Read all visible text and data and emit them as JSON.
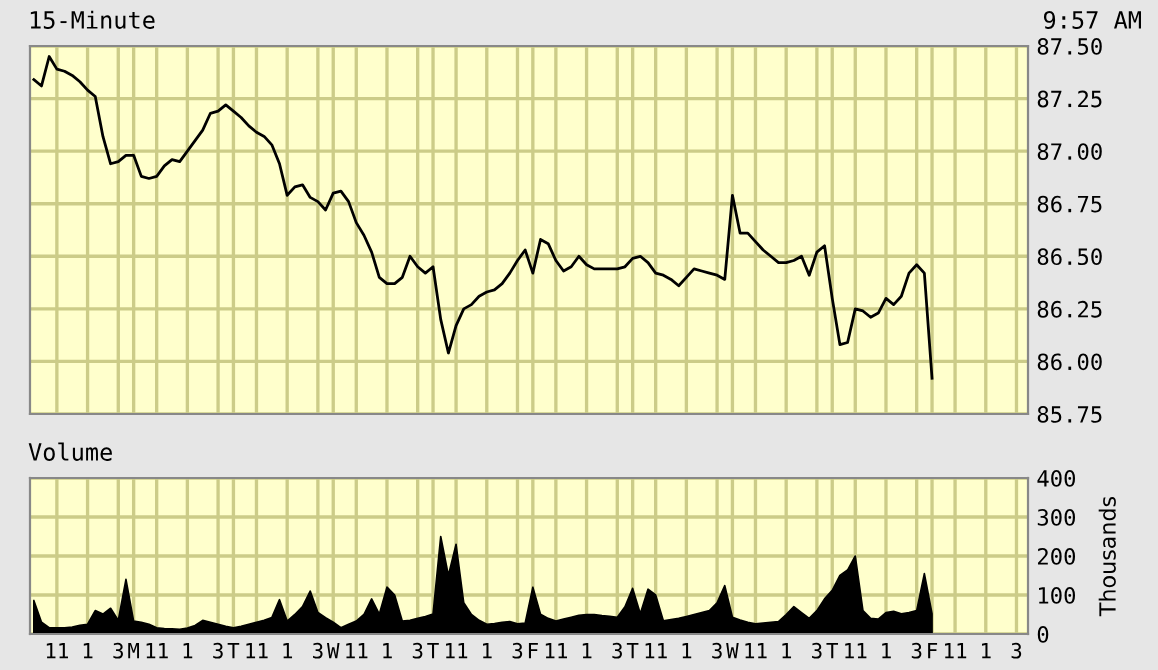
{
  "chart_data": [
    {
      "type": "line",
      "title": "15-Minute",
      "annotations": [
        "9:57 AM"
      ],
      "ylim": [
        85.75,
        87.5
      ],
      "grid": true,
      "tick_labels": "y",
      "marker": "none",
      "line_style": "solid",
      "yticks": [
        85.75,
        {
          "value": 86,
          "label": "86.00"
        },
        86.25,
        {
          "value": 86.5,
          "label": "86.50"
        },
        86.75,
        {
          "value": 87,
          "label": "87.00"
        },
        87.25,
        {
          "value": 87.5,
          "label": "87.50"
        }
      ],
      "categories": [
        null,
        null,
        null,
        null,
        null,
        null,
        null,
        null,
        null,
        null,
        null,
        null,
        null,
        null,
        null,
        null,
        null,
        null,
        null,
        null,
        null,
        null,
        null,
        null,
        null,
        null,
        null,
        null,
        null,
        null,
        null,
        null,
        null,
        null,
        null,
        null,
        null,
        null,
        null,
        null,
        null,
        null,
        null,
        null,
        null,
        null,
        null,
        null,
        null,
        null,
        null,
        null,
        null,
        null,
        null,
        null,
        null,
        null,
        null,
        null,
        null,
        null,
        null,
        null,
        null,
        null,
        null,
        null,
        null,
        null,
        null,
        null,
        null,
        null,
        null,
        null,
        null,
        null,
        null,
        null,
        null,
        null,
        null,
        null,
        null,
        null,
        null,
        null,
        null,
        null,
        null,
        null,
        null,
        null,
        null,
        null,
        null,
        null,
        null,
        null,
        null,
        null,
        null,
        null,
        null,
        null,
        null,
        null,
        null,
        null,
        null,
        null,
        null,
        null,
        null,
        null,
        null,
        null,
        null,
        null,
        null,
        null,
        null,
        null,
        null,
        null,
        null,
        null,
        null,
        null
      ],
      "series": [
        {
          "color": "#000000",
          "values": [
            87.34,
            87.31,
            87.45,
            87.39,
            87.38,
            87.36,
            87.33,
            87.29,
            87.26,
            87.07,
            86.94,
            86.95,
            86.98,
            86.98,
            86.88,
            86.87,
            86.88,
            86.93,
            86.96,
            86.95,
            87.0,
            87.05,
            87.1,
            87.18,
            87.19,
            87.22,
            87.19,
            87.16,
            87.12,
            87.09,
            87.07,
            87.03,
            86.94,
            86.79,
            86.83,
            86.84,
            86.78,
            86.76,
            86.72,
            86.8,
            86.81,
            86.76,
            86.66,
            86.6,
            86.52,
            86.4,
            86.37,
            86.37,
            86.4,
            86.5,
            86.45,
            86.42,
            86.45,
            86.2,
            86.04,
            86.17,
            86.25,
            86.27,
            86.31,
            86.33,
            86.34,
            86.37,
            86.42,
            86.48,
            86.53,
            86.42,
            86.58,
            86.56,
            86.48,
            86.43,
            86.45,
            86.5,
            86.46,
            86.44,
            86.44,
            86.44,
            86.44,
            86.45,
            86.49,
            86.5,
            86.47,
            86.42,
            86.41,
            86.39,
            86.36,
            86.4,
            86.44,
            86.43,
            86.42,
            86.41,
            86.39,
            86.79,
            86.61,
            86.61,
            86.57,
            86.53,
            86.5,
            86.47,
            86.47,
            86.48,
            86.5,
            86.41,
            86.52,
            86.55,
            86.3,
            86.08,
            86.09,
            86.25,
            86.24,
            86.21,
            86.23,
            86.3,
            86.27,
            86.31,
            86.42,
            86.46,
            86.42,
            85.92,
            null,
            null,
            null,
            null,
            null,
            null,
            null,
            null,
            null,
            null,
            null,
            null
          ]
        }
      ]
    },
    {
      "type": "area",
      "title": "Volume",
      "ylabel": "Thousands",
      "ylim": [
        0,
        400
      ],
      "yticks": [
        0,
        100,
        200,
        300,
        400
      ],
      "grid": true,
      "categories": [
        null,
        null,
        null,
        "11",
        null,
        null,
        null,
        "1",
        null,
        null,
        null,
        "3",
        null,
        "M",
        null,
        null,
        "11",
        null,
        null,
        null,
        "1",
        null,
        null,
        null,
        "3",
        null,
        "T",
        null,
        null,
        "11",
        null,
        null,
        null,
        "1",
        null,
        null,
        null,
        "3",
        null,
        "W",
        null,
        null,
        "11",
        null,
        null,
        null,
        "1",
        null,
        null,
        null,
        "3",
        null,
        "T",
        null,
        null,
        "11",
        null,
        null,
        null,
        "1",
        null,
        null,
        null,
        "3",
        null,
        "F",
        null,
        null,
        "11",
        null,
        null,
        null,
        "1",
        null,
        null,
        null,
        "3",
        null,
        "T",
        null,
        null,
        "11",
        null,
        null,
        null,
        "1",
        null,
        null,
        null,
        "3",
        null,
        "W",
        null,
        null,
        "11",
        null,
        null,
        null,
        "1",
        null,
        null,
        null,
        "3",
        null,
        "T",
        null,
        null,
        "11",
        null,
        null,
        null,
        "1",
        null,
        null,
        null,
        "3",
        null,
        "F",
        null,
        null,
        "11",
        null,
        null,
        null,
        "1",
        null,
        null,
        null,
        "3",
        null
      ],
      "series": [
        {
          "color": "#000000",
          "values": [
            86,
            30,
            16,
            16,
            16,
            18,
            22,
            25,
            60,
            51,
            66,
            35,
            140,
            33,
            30,
            25,
            16,
            14,
            13,
            12,
            15,
            22,
            35,
            30,
            25,
            20,
            16,
            20,
            25,
            30,
            35,
            42,
            88,
            33,
            50,
            70,
            110,
            55,
            42,
            30,
            16,
            25,
            33,
            50,
            90,
            51,
            120,
            100,
            33,
            35,
            40,
            45,
            51,
            250,
            150,
            230,
            80,
            50,
            35,
            25,
            27,
            30,
            32,
            26,
            28,
            120,
            51,
            40,
            33,
            38,
            43,
            48,
            50,
            50,
            47,
            45,
            43,
            70,
            117,
            52,
            115,
            100,
            34,
            37,
            40,
            45,
            50,
            55,
            60,
            80,
            124,
            43,
            36,
            30,
            26,
            28,
            30,
            32,
            50,
            70,
            55,
            40,
            60,
            90,
            112,
            150,
            164,
            200,
            60,
            40,
            38,
            55,
            58,
            52,
            55,
            60,
            155,
            52,
            null,
            null,
            null,
            null,
            null,
            null,
            null,
            null,
            null,
            null,
            null,
            null
          ]
        }
      ]
    }
  ]
}
